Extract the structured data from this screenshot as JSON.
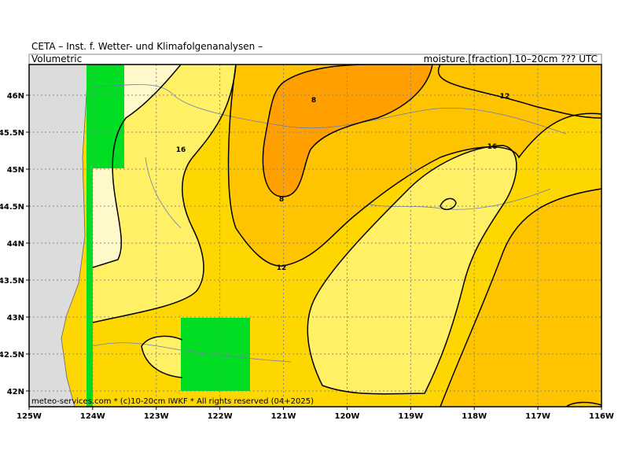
{
  "header": {
    "title": "CETA – Inst. f. Wetter- und Klimafolgenanalysen –",
    "left": "Volumetric",
    "right": "moisture.[fraction].10–20cm ??? UTC"
  },
  "x_axis": {
    "labels": [
      "125W",
      "124W",
      "123W",
      "122W",
      "121W",
      "120W",
      "119W",
      "118W",
      "117W",
      "116W"
    ]
  },
  "y_axis": {
    "labels": [
      "46N",
      "45.5N",
      "45N",
      "44.5N",
      "44N",
      "43.5N",
      "43N",
      "42.5N",
      "42N"
    ]
  },
  "contour_labels": [
    "8",
    "8",
    "12",
    "12",
    "16",
    "16"
  ],
  "footer": "meteo-services.com * (c)10-20cm IWKF * All rights reserved (04+2025)"
}
